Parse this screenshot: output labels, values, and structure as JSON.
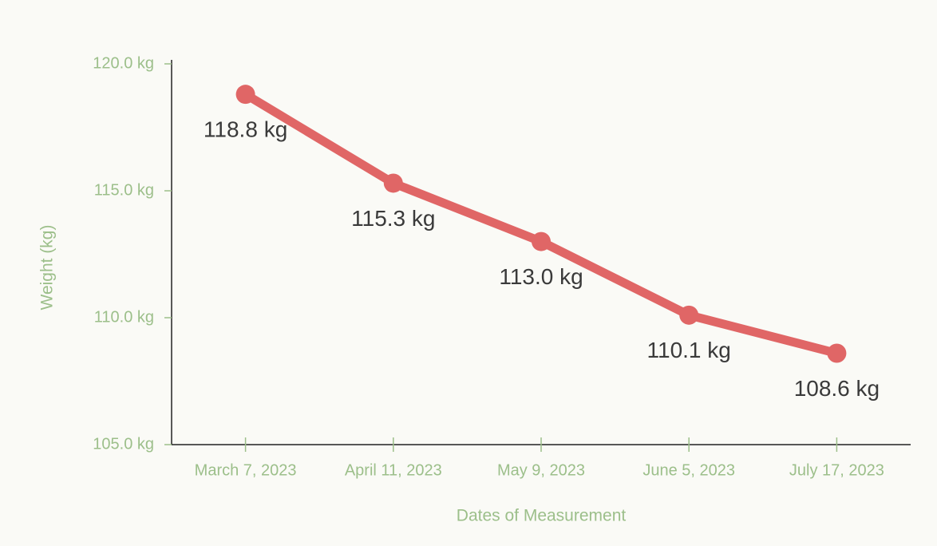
{
  "chart_data": {
    "type": "line",
    "x_label": "Dates of Measurement",
    "y_label": "Weight (kg)",
    "categories": [
      "March 7, 2023",
      "April 11, 2023",
      "May 9, 2023",
      "June 5, 2023",
      "July 17, 2023"
    ],
    "series": [
      {
        "name": "Weight",
        "color": "#e06666",
        "values": [
          118.8,
          115.3,
          113.0,
          110.1,
          108.6
        ],
        "value_labels": [
          "118.8 kg",
          "115.3 kg",
          "113.0 kg",
          "110.1 kg",
          "108.6 kg"
        ]
      }
    ],
    "ylim": [
      105,
      120
    ],
    "yticks": [
      {
        "value": 105,
        "label": "105.0 kg"
      },
      {
        "value": 110,
        "label": "110.0 kg"
      },
      {
        "value": 115,
        "label": "115.0 kg"
      },
      {
        "value": 120,
        "label": "120.0 kg"
      }
    ],
    "grid": false
  }
}
